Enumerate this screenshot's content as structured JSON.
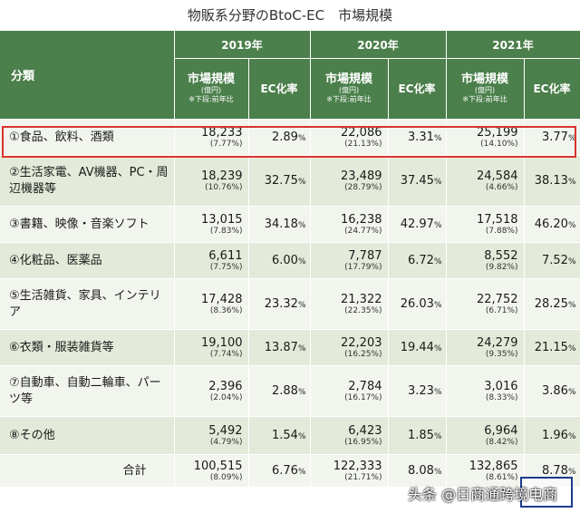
{
  "title": "物販系分野のBtoC-EC　市場規模",
  "header": {
    "category_label": "分類",
    "years": [
      "2019年",
      "2020年",
      "2021年"
    ],
    "market_label": "市場規模",
    "unit_label": "(億円)",
    "note_label": "※下段:前年比",
    "ec_label": "EC化率"
  },
  "rows": [
    {
      "name": "①食品、飲料、酒類",
      "v2019": "18,233",
      "g2019": "(7.77%)",
      "r2019": "2.89",
      "v2020": "22,086",
      "g2020": "(21.13%)",
      "r2020": "3.31",
      "v2021": "25,199",
      "g2021": "(14.10%)",
      "r2021": "3.77"
    },
    {
      "name": "②生活家電、AV機器、PC・周辺機器等",
      "v2019": "18,239",
      "g2019": "(10.76%)",
      "r2019": "32.75",
      "v2020": "23,489",
      "g2020": "(28.79%)",
      "r2020": "37.45",
      "v2021": "24,584",
      "g2021": "(4.66%)",
      "r2021": "38.13"
    },
    {
      "name": "③書籍、映像・音楽ソフト",
      "v2019": "13,015",
      "g2019": "(7.83%)",
      "r2019": "34.18",
      "v2020": "16,238",
      "g2020": "(24.77%)",
      "r2020": "42.97",
      "v2021": "17,518",
      "g2021": "(7.88%)",
      "r2021": "46.20"
    },
    {
      "name": "④化粧品、医薬品",
      "v2019": "6,611",
      "g2019": "(7.75%)",
      "r2019": "6.00",
      "v2020": "7,787",
      "g2020": "(17.79%)",
      "r2020": "6.72",
      "v2021": "8,552",
      "g2021": "(9.82%)",
      "r2021": "7.52"
    },
    {
      "name": "⑤生活雑貨、家具、インテリア",
      "v2019": "17,428",
      "g2019": "(8.36%)",
      "r2019": "23.32",
      "v2020": "21,322",
      "g2020": "(22.35%)",
      "r2020": "26.03",
      "v2021": "22,752",
      "g2021": "(6.71%)",
      "r2021": "28.25"
    },
    {
      "name": "⑥衣類・服装雑貨等",
      "v2019": "19,100",
      "g2019": "(7.74%)",
      "r2019": "13.87",
      "v2020": "22,203",
      "g2020": "(16.25%)",
      "r2020": "19.44",
      "v2021": "24,279",
      "g2021": "(9.35%)",
      "r2021": "21.15"
    },
    {
      "name": "⑦自動車、自動二輪車、パーツ等",
      "v2019": "2,396",
      "g2019": "(2.04%)",
      "r2019": "2.88",
      "v2020": "2,784",
      "g2020": "(16.17%)",
      "r2020": "3.23",
      "v2021": "3,016",
      "g2021": "(8.33%)",
      "r2021": "3.86"
    },
    {
      "name": "⑧その他",
      "v2019": "5,492",
      "g2019": "(4.79%)",
      "r2019": "1.54",
      "v2020": "6,423",
      "g2020": "(16.95%)",
      "r2020": "1.85",
      "v2021": "6,964",
      "g2021": "(8.42%)",
      "r2021": "1.96"
    }
  ],
  "total": {
    "name": "合計",
    "v2019": "100,515",
    "g2019": "(8.09%)",
    "r2019": "6.76",
    "v2020": "122,333",
    "g2020": "(21.71%)",
    "r2020": "8.08",
    "v2021": "132,865",
    "g2021": "(8.61%)",
    "r2021": "8.78"
  },
  "pct_sign": "%",
  "watermark": "头条 @日商通跨境电商"
}
